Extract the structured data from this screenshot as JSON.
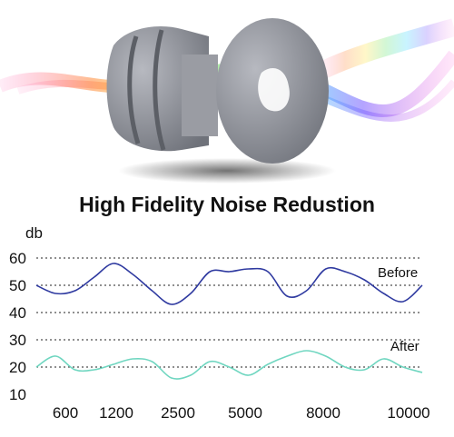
{
  "title": "High Fidelity Noise Redustion",
  "colors": {
    "before": "#2f3aa0",
    "after": "#6fd6c0",
    "grid": "#222222",
    "earplug": "#8e9199"
  },
  "chart_data": {
    "type": "line",
    "ylabel": "db",
    "y_ticks": [
      60,
      50,
      40,
      30,
      20,
      10
    ],
    "ylim": [
      10,
      60
    ],
    "grid_lines_at": [
      60,
      50,
      40,
      30,
      20
    ],
    "x_labels": [
      "600",
      "1200",
      "2500",
      "5000",
      "8000",
      "10000"
    ],
    "series": [
      {
        "name": "Before",
        "x": [
          0,
          0.05,
          0.1,
          0.15,
          0.2,
          0.25,
          0.3,
          0.35,
          0.4,
          0.45,
          0.5,
          0.55,
          0.6,
          0.65,
          0.7,
          0.75,
          0.8,
          0.85,
          0.9,
          0.95,
          1.0
        ],
        "values": [
          50,
          47,
          48,
          53,
          58,
          54,
          48,
          43,
          47,
          55,
          55,
          56,
          55,
          46,
          48,
          56,
          55,
          52,
          47,
          44,
          50
        ]
      },
      {
        "name": "After",
        "x": [
          0,
          0.05,
          0.1,
          0.15,
          0.2,
          0.25,
          0.3,
          0.35,
          0.4,
          0.45,
          0.5,
          0.55,
          0.6,
          0.65,
          0.7,
          0.75,
          0.8,
          0.85,
          0.9,
          0.95,
          1.0
        ],
        "values": [
          20,
          24,
          19,
          19,
          21,
          23,
          22,
          16,
          17,
          22,
          20,
          17,
          21,
          24,
          26,
          24,
          20,
          19,
          23,
          20,
          18
        ]
      }
    ]
  }
}
